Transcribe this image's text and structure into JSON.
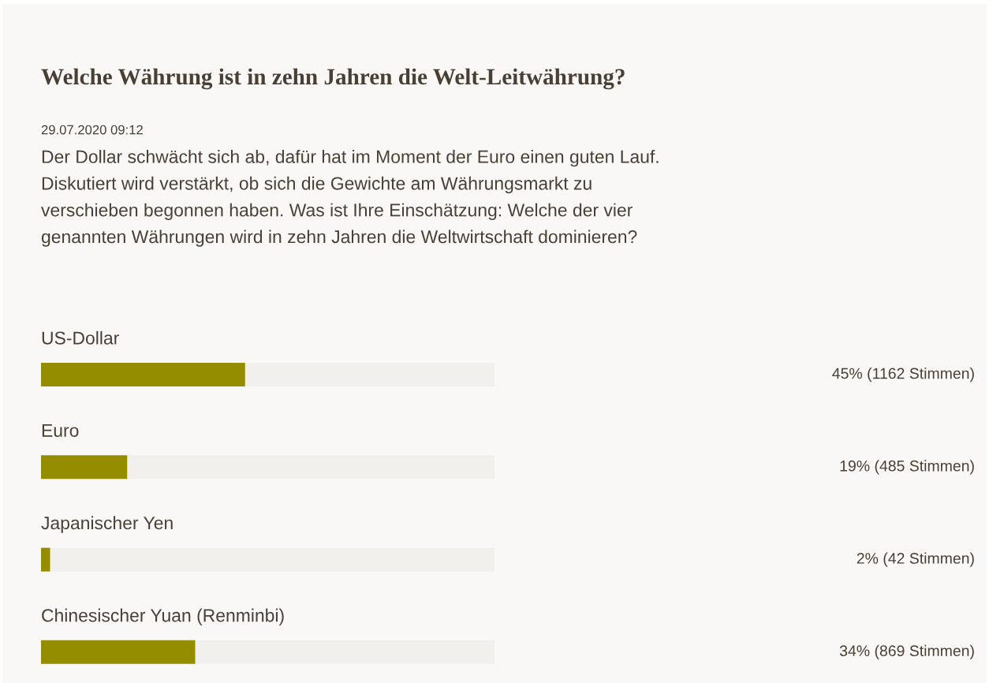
{
  "chart_data": {
    "type": "bar",
    "orientation": "horizontal",
    "title": "Welche Währung ist in zehn Jahren die Welt-Leitwährung?",
    "subtitle": "29.07.2020 09:12",
    "annotations": [
      "Der Dollar schwächt sich ab, dafür hat im Moment der Euro einen guten Lauf.\nDiskutiert wird verstärkt, ob sich die Gewichte am Währungsmarkt zu\nverschieben begonnen haben. Was ist Ihre Einschätzung: Welche der vier\ngenannten Währungen wird in zehn Jahren die Weltwirtschaft dominieren?"
    ],
    "categories": [
      "US-Dollar",
      "Euro",
      "Japanischer Yen",
      "Chinesischer Yuan (Renminbi)"
    ],
    "values": [
      45,
      19,
      2,
      34
    ],
    "value_labels": [
      "45% (1162 Stimmen)",
      "19% (485 Stimmen)",
      "2% (42 Stimmen)",
      "34% (869 Stimmen)"
    ],
    "color": "#948d00",
    "xlim": [
      0,
      100
    ]
  }
}
